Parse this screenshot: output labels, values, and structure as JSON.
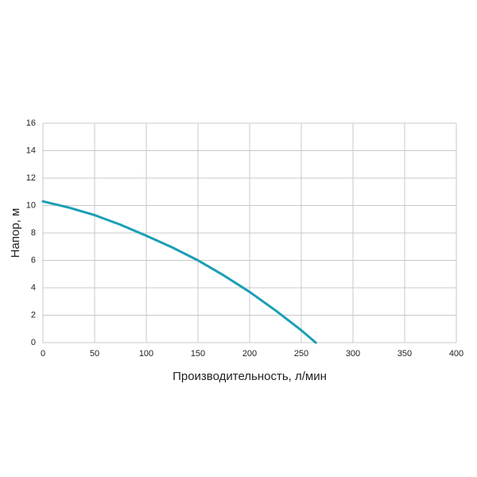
{
  "chart_data": {
    "type": "line",
    "x_label": "Производительность, л/мин",
    "y_label": "Напор, м",
    "x": [
      0,
      25,
      50,
      75,
      100,
      125,
      150,
      175,
      200,
      225,
      250,
      264
    ],
    "values": [
      10.3,
      9.85,
      9.3,
      8.6,
      7.8,
      6.95,
      6.0,
      4.9,
      3.7,
      2.35,
      0.9,
      0
    ],
    "color": "#1a9fb5",
    "xlim": [
      0,
      400
    ],
    "xticks": [
      0,
      50,
      100,
      150,
      200,
      250,
      300,
      350,
      400
    ],
    "ylim": [
      0,
      16
    ],
    "yticks": [
      0,
      2,
      4,
      6,
      8,
      10,
      12,
      14,
      16
    ],
    "grid": true
  }
}
